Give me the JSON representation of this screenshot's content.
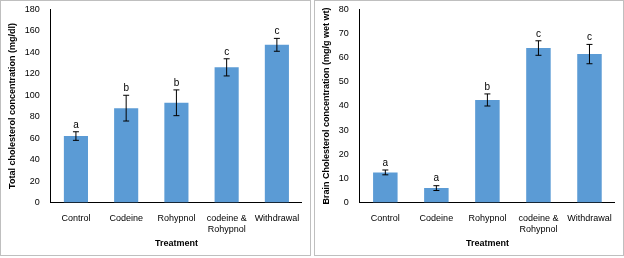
{
  "chart_data": [
    {
      "type": "bar",
      "categories": [
        "Control",
        "Codeine",
        "Rohypnol",
        "codeine & Rohypnol",
        "Withdrawal"
      ],
      "values": [
        62,
        88,
        93,
        126,
        147
      ],
      "errors": [
        4,
        12,
        12,
        8,
        6
      ],
      "annotations": [
        "a",
        "b",
        "b",
        "c",
        "c"
      ],
      "x_label": "Treatment",
      "y_label": "Total cholesterol concentration (mg/dl)",
      "color": "#5b9bd5",
      "ylim": [
        0,
        180
      ],
      "yticks": [
        0,
        20,
        40,
        60,
        80,
        100,
        120,
        140,
        160,
        180
      ],
      "grid": false
    },
    {
      "type": "bar",
      "categories": [
        "Control",
        "Codeine",
        "Rohypnol",
        "codeine & Rohypnol",
        "Withdrawal"
      ],
      "values": [
        12.5,
        6,
        42.5,
        64,
        61.5
      ],
      "errors": [
        1,
        1,
        2.5,
        3,
        4
      ],
      "annotations": [
        "a",
        "a",
        "b",
        "c",
        "c"
      ],
      "x_label": "Treatment",
      "y_label": "Brain Cholesterol concentration (mg/g wet wt)",
      "color": "#5b9bd5",
      "ylim": [
        0,
        80
      ],
      "yticks": [
        0,
        10,
        20,
        30,
        40,
        50,
        60,
        70,
        80
      ],
      "grid": false
    }
  ]
}
